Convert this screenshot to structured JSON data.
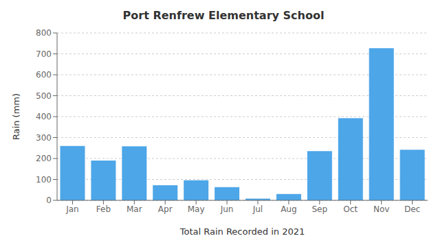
{
  "chart_data": {
    "type": "bar",
    "title": "Port Renfrew Elementary School",
    "xlabel": "Total Rain Recorded in 2021",
    "ylabel": "Rain (mm)",
    "categories": [
      "Jan",
      "Feb",
      "Mar",
      "Apr",
      "May",
      "Jun",
      "Jul",
      "Aug",
      "Sep",
      "Oct",
      "Nov",
      "Dec"
    ],
    "values": [
      260,
      190,
      258,
      72,
      96,
      63,
      8,
      30,
      235,
      393,
      727,
      242
    ],
    "color": "#4da6e8",
    "ylim": [
      0,
      800
    ],
    "yticks": [
      0,
      100,
      200,
      300,
      400,
      500,
      600,
      700,
      800
    ],
    "grid": true
  }
}
